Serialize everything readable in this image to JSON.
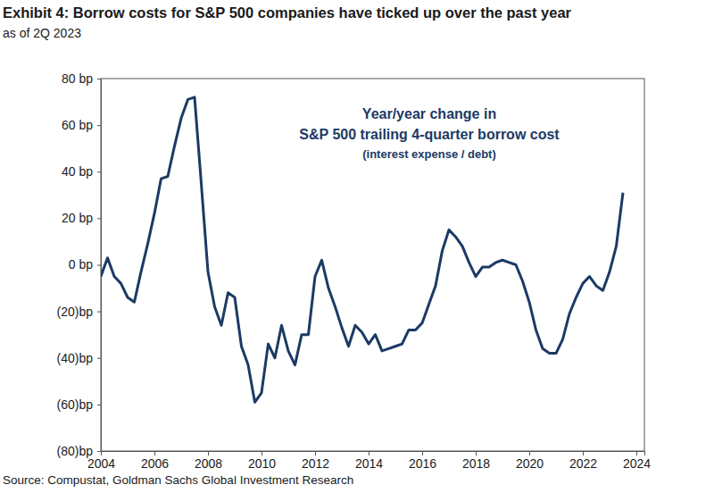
{
  "chart_data": {
    "type": "line",
    "title": "Exhibit 4: Borrow costs for S&P 500 companies have ticked up over the past year",
    "subtitle": "as of 2Q 2023",
    "annotation": [
      "Year/year change in",
      "S&P 500 trailing 4-quarter borrow cost",
      "(interest expense / debt)"
    ],
    "source": "Source: Compustat, Goldman Sachs Global Investment Research",
    "color": "#1c3a64",
    "grid": false,
    "x": [
      2004.0,
      2004.25,
      2004.5,
      2004.75,
      2005.0,
      2005.25,
      2005.5,
      2005.75,
      2006.0,
      2006.25,
      2006.5,
      2006.75,
      2007.0,
      2007.25,
      2007.5,
      2007.75,
      2008.0,
      2008.25,
      2008.5,
      2008.75,
      2009.0,
      2009.25,
      2009.5,
      2009.75,
      2010.0,
      2010.25,
      2010.5,
      2010.75,
      2011.0,
      2011.25,
      2011.5,
      2011.75,
      2012.0,
      2012.25,
      2012.5,
      2012.75,
      2013.0,
      2013.25,
      2013.5,
      2013.75,
      2014.0,
      2014.25,
      2014.5,
      2014.75,
      2015.0,
      2015.25,
      2015.5,
      2015.75,
      2016.0,
      2016.25,
      2016.5,
      2016.75,
      2017.0,
      2017.25,
      2017.5,
      2017.75,
      2018.0,
      2018.25,
      2018.5,
      2018.75,
      2019.0,
      2019.25,
      2019.5,
      2019.75,
      2020.0,
      2020.25,
      2020.5,
      2020.75,
      2021.0,
      2021.25,
      2021.5,
      2021.75,
      2022.0,
      2022.25,
      2022.5,
      2022.75,
      2023.0,
      2023.25,
      2023.5
    ],
    "values": [
      -5,
      3,
      -5,
      -8,
      -14,
      -16,
      -3,
      9,
      22,
      37,
      38,
      51,
      63,
      71,
      72,
      35,
      -3,
      -18,
      -26,
      -12,
      -14,
      -35,
      -43,
      -59,
      -55,
      -34,
      -40,
      -26,
      -37,
      -43,
      -30,
      -30,
      -5,
      2,
      -10,
      -18,
      -27,
      -35,
      -26,
      -29,
      -34,
      -30,
      -37,
      -36,
      -35,
      -34,
      -28,
      -28,
      -25,
      -17,
      -9,
      6,
      15,
      12,
      8,
      1,
      -5,
      -1,
      -1,
      1,
      2,
      1,
      0,
      -7,
      -16,
      -28,
      -36,
      -38,
      -38,
      -32,
      -21,
      -14,
      -8,
      -5,
      -9,
      -11,
      -3,
      8,
      31
    ],
    "xlim": [
      2004,
      2024.3
    ],
    "xticks": [
      2004,
      2006,
      2008,
      2010,
      2012,
      2014,
      2016,
      2018,
      2020,
      2022,
      2024
    ],
    "ylim": [
      -80,
      80
    ],
    "yticks": [
      {
        "value": -80,
        "label": "(80)bp"
      },
      {
        "value": -60,
        "label": "(60)bp"
      },
      {
        "value": -40,
        "label": "(40)bp"
      },
      {
        "value": -20,
        "label": "(20)bp"
      },
      {
        "value": 0,
        "label": "0 bp"
      },
      {
        "value": 20,
        "label": "20 bp"
      },
      {
        "value": 40,
        "label": "40 bp"
      },
      {
        "value": 60,
        "label": "60 bp"
      },
      {
        "value": 80,
        "label": "80 bp"
      }
    ]
  }
}
